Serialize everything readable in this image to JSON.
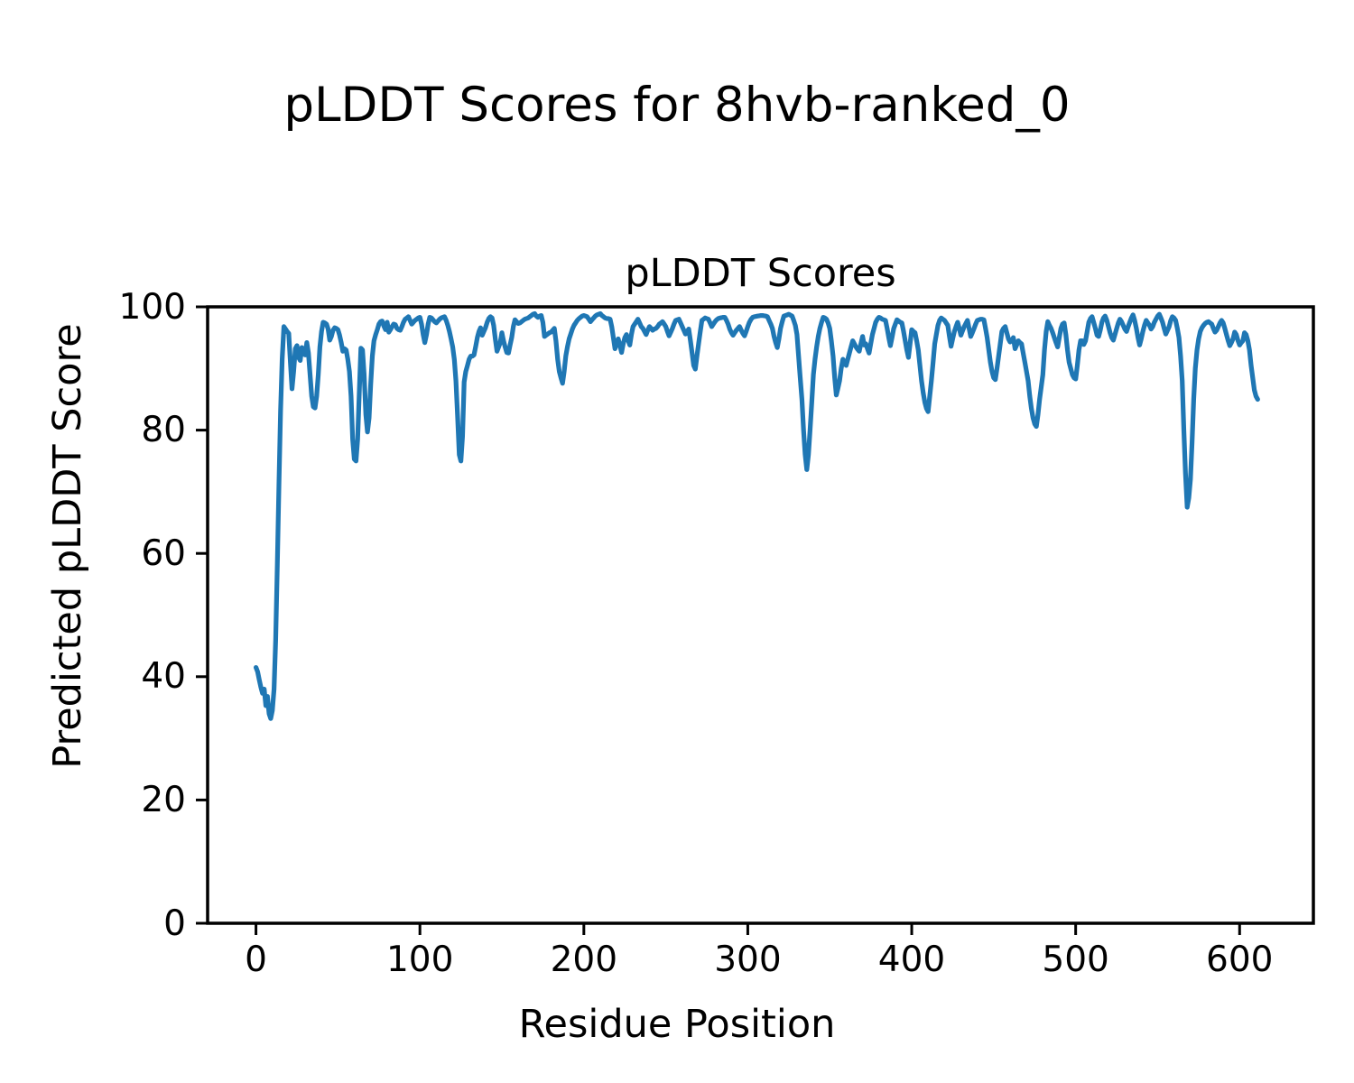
{
  "figure": {
    "background_color": "#ffffff",
    "text_color": "#000000"
  },
  "chart_data": {
    "type": "line",
    "suptitle": "pLDDT Scores for 8hvb-ranked_0",
    "title": "pLDDT Scores",
    "xlabel": "Residue Position",
    "ylabel": "Predicted pLDDT Score",
    "xlim": [
      -29.5,
      645
    ],
    "ylim": [
      0,
      100
    ],
    "xticks": [
      0,
      100,
      200,
      300,
      400,
      500,
      600
    ],
    "yticks": [
      0,
      20,
      40,
      60,
      80,
      100
    ],
    "grid": false,
    "legend": "none",
    "line_color": "#1f77b4",
    "series": [
      {
        "name": "pLDDT",
        "x_start": 0,
        "x_step": 1,
        "values": [
          41.5,
          40.8,
          39.5,
          38.3,
          37.3,
          38.0,
          35.3,
          36.8,
          34.0,
          33.2,
          34.5,
          38,
          46,
          58,
          71,
          83,
          91.5,
          96.8,
          96.4,
          96.0,
          95.7,
          91,
          86.7,
          89.5,
          93.2,
          93.7,
          91.8,
          91.3,
          93.4,
          92.4,
          92.2,
          94.2,
          92.5,
          89,
          85.5,
          83.8,
          83.6,
          85.5,
          89,
          93.5,
          96,
          97.5,
          97.4,
          97.2,
          96.4,
          94.6,
          95.2,
          96.2,
          96.6,
          96.5,
          96.3,
          95.4,
          94.2,
          92.8,
          93.2,
          93.0,
          91.5,
          89.5,
          85.5,
          78.5,
          75.3,
          75.0,
          78.5,
          86,
          93.3,
          93.0,
          89,
          82.5,
          79.7,
          82,
          87.5,
          92,
          94.5,
          95.5,
          96.3,
          97.2,
          97.6,
          97.7,
          96.9,
          96.3,
          97.5,
          95.9,
          96.3,
          96.8,
          97.2,
          97.1,
          96.5,
          96.3,
          96.2,
          96.8,
          97.5,
          98.0,
          98.2,
          98.4,
          97.8,
          97.2,
          97.5,
          97.8,
          98.0,
          98.2,
          98.3,
          97.2,
          95.5,
          94.2,
          95.5,
          97.2,
          98.3,
          98.2,
          97.9,
          97.6,
          97.4,
          97.7,
          98.0,
          98.2,
          98.3,
          98.4,
          97.8,
          97.0,
          96.0,
          94.8,
          93.5,
          91.5,
          88,
          82,
          76,
          75.0,
          79,
          87.8,
          89.5,
          90.5,
          91.5,
          92.0,
          92.0,
          92.2,
          93.5,
          95,
          96,
          96.6,
          95.4,
          96,
          96.6,
          97.5,
          98.1,
          98.4,
          98.2,
          97,
          94.8,
          92.8,
          93.5,
          94.2,
          95.8,
          94.5,
          93.5,
          92.6,
          92.5,
          93.8,
          95,
          96.8,
          97.9,
          97.6,
          97.3,
          97.4,
          97.6,
          97.8,
          98.0,
          98.1,
          98.2,
          98.4,
          98.6,
          98.8,
          98.9,
          98.5,
          98.3,
          98.5,
          98.6,
          97.5,
          95.2,
          95.4,
          95.6,
          95.8,
          95.9,
          96.2,
          96.5,
          94.5,
          91.5,
          89.5,
          88.5,
          87.6,
          89.5,
          92,
          93.5,
          94.8,
          95.6,
          96.4,
          97,
          97.4,
          97.8,
          98.1,
          98.3,
          98.5,
          98.6,
          98.5,
          98.4,
          98,
          97.6,
          97.9,
          98.2,
          98.5,
          98.7,
          98.8,
          98.9,
          98.6,
          98.4,
          98.2,
          98.1,
          98.1,
          98.0,
          96.8,
          95,
          93.2,
          94,
          94.8,
          93.7,
          92.6,
          94,
          95,
          95.5,
          94.6,
          93.8,
          95.5,
          96.8,
          97.2,
          97.6,
          98.0,
          97.4,
          96.8,
          96.5,
          96,
          95.5,
          96.2,
          96.8,
          96.5,
          96.2,
          96.4,
          96.5,
          96.8,
          97.2,
          97.4,
          97.6,
          97.2,
          96.8,
          96,
          95.3,
          95.9,
          96.5,
          97.2,
          97.8,
          97.9,
          98.0,
          97.4,
          96.8,
          96.2,
          95.6,
          96.0,
          96.4,
          94.5,
          92.5,
          90.5,
          89.9,
          92,
          94,
          96,
          97.8,
          98.0,
          98.2,
          98.1,
          98.0,
          97.4,
          96.8,
          97.2,
          97.6,
          97.9,
          98.1,
          98.2,
          98.25,
          98.3,
          98.3,
          97.8,
          97.2,
          96.4,
          95.8,
          95.4,
          95.8,
          96.2,
          96.5,
          96.8,
          96.2,
          95.7,
          95.3,
          96,
          96.8,
          97.5,
          98,
          98.3,
          98.4,
          98.45,
          98.5,
          98.55,
          98.6,
          98.6,
          98.55,
          98.5,
          98.4,
          97.8,
          97.2,
          96.5,
          95.2,
          94.2,
          93.4,
          94.8,
          96.5,
          97.6,
          98.5,
          98.6,
          98.7,
          98.8,
          98.65,
          98.5,
          97.8,
          97,
          95.5,
          92,
          88.5,
          85,
          80,
          76,
          73.6,
          76,
          80,
          84.5,
          89,
          91.5,
          93.5,
          95.2,
          96.5,
          97.5,
          98.3,
          98.2,
          98.0,
          97.4,
          96.5,
          94.5,
          92,
          88.5,
          85.7,
          86.8,
          88,
          90,
          91.5,
          91,
          90.5,
          91.5,
          92.5,
          93.5,
          94.5,
          94,
          93.5,
          93.1,
          92.8,
          94,
          95.2,
          93.8,
          94,
          93.2,
          92.5,
          94,
          95.5,
          96.5,
          97.5,
          98,
          98.3,
          98.2,
          98.0,
          97.9,
          97.8,
          96.5,
          95,
          93.7,
          95,
          96.5,
          97.2,
          97.9,
          97.7,
          97.5,
          97.4,
          96,
          94.5,
          93,
          91.8,
          94,
          96.3,
          96,
          95.8,
          94.5,
          93,
          90.5,
          88,
          86,
          84.5,
          83.5,
          83.0,
          85.5,
          88,
          91,
          94,
          95.5,
          97,
          97.8,
          98.2,
          98.0,
          97.8,
          97.4,
          97.0,
          95.2,
          93.6,
          94.8,
          96,
          96.8,
          97.5,
          96.5,
          95.4,
          96.1,
          96.8,
          97.3,
          97.8,
          96.5,
          95.2,
          95.8,
          96.5,
          97.2,
          97.8,
          97.9,
          98.0,
          98.0,
          97.9,
          96.5,
          95,
          93,
          91,
          89.5,
          88.5,
          88.2,
          90,
          92,
          94,
          96,
          96.5,
          96.8,
          95.8,
          94.8,
          94.3,
          94.6,
          95,
          93.2,
          93.8,
          94.5,
          94.2,
          94,
          92.5,
          91,
          89.5,
          88,
          85.5,
          83.5,
          82,
          81,
          80.6,
          82.5,
          85,
          87,
          89,
          93,
          96,
          97.6,
          97,
          96.5,
          95.8,
          95,
          94.2,
          93.5,
          95,
          96.5,
          97.2,
          97.4,
          95.5,
          93,
          91,
          90,
          89,
          88.5,
          88.3,
          90.5,
          93,
          94.5,
          94.5,
          93.9,
          94.5,
          96,
          97.5,
          98.1,
          98.4,
          97.5,
          96.5,
          95.4,
          95.2,
          96.2,
          97.5,
          98.2,
          98.5,
          97.8,
          96.8,
          95.8,
          95,
          94.6,
          95.5,
          96.5,
          97.4,
          98,
          97.6,
          97,
          96.4,
          96,
          96.8,
          97.5,
          98.2,
          98.7,
          97.8,
          96.5,
          95,
          93.8,
          94.8,
          96,
          97,
          97.8,
          97.4,
          97,
          96.4,
          96.8,
          97.5,
          98,
          98.5,
          98.8,
          98.2,
          97.5,
          96.5,
          95.6,
          96.2,
          96.8,
          97.8,
          98.4,
          98.2,
          97.8,
          96.5,
          95,
          92,
          88,
          80,
          73,
          67.5,
          69,
          72,
          78,
          85,
          90,
          93,
          94.8,
          96,
          96.6,
          97,
          97.3,
          97.5,
          97.6,
          97.4,
          97.2,
          96.5,
          95.9,
          96.2,
          96.8,
          97.4,
          97.8,
          97.4,
          96.5,
          95.5,
          94.5,
          93.7,
          94.2,
          94.8,
          95.9,
          95.5,
          94.5,
          93.8,
          94.2,
          94.5,
          95.8,
          95.5,
          94.5,
          93,
          90.5,
          88.5,
          86.5,
          85.5,
          85.0
        ]
      }
    ]
  }
}
